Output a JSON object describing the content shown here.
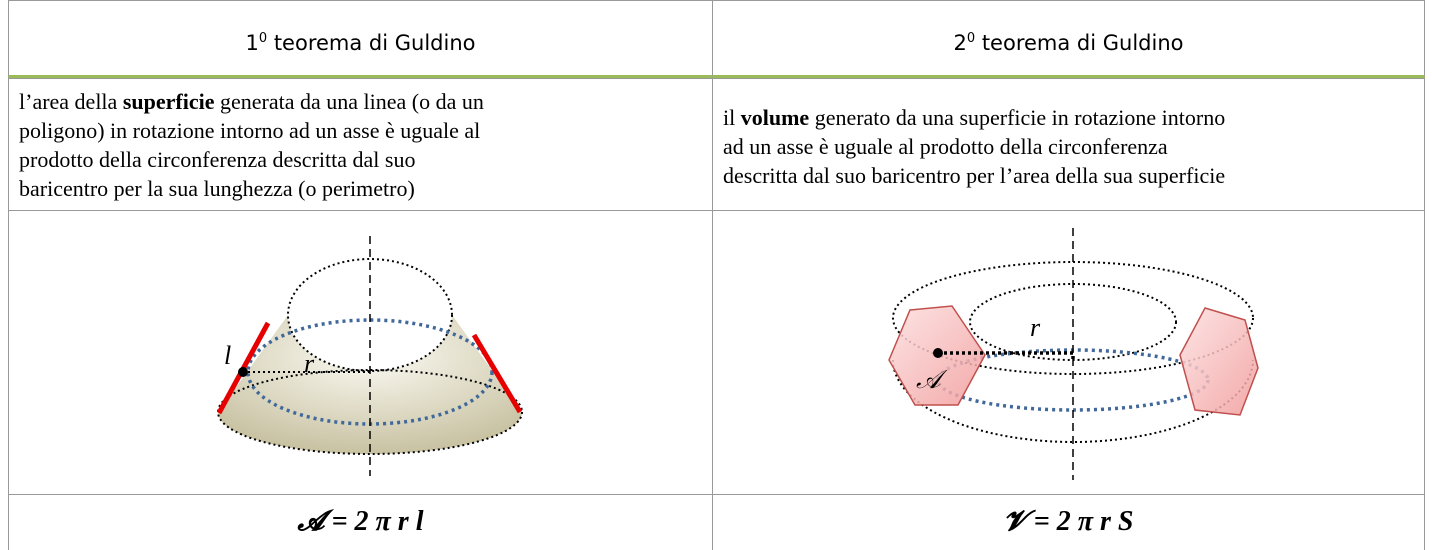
{
  "header": [
    {
      "number": "1",
      "superscript": "0",
      "title": "teorema di Guldino"
    },
    {
      "number": "2",
      "superscript": "0",
      "title": "teorema di Guldino"
    }
  ],
  "descriptions": [
    {
      "before": "l’area della ",
      "bold": "superficie",
      "after": " generata da una linea (o da un",
      "more_lines": [
        "poligono) in rotazione intorno ad un asse è uguale al",
        "prodotto della circonferenza descritta dal suo",
        "baricentro per la sua lunghezza (o perimetro)"
      ]
    },
    {
      "before": "il ",
      "bold": "volume",
      "after": " generato da una superficie in rotazione intorno",
      "more_lines": [
        "ad un asse è uguale al prodotto della circonferenza",
        "descritta dal suo baricentro per l’area della sua superficie"
      ]
    }
  ],
  "diagrams": [
    {
      "labels": [
        "l",
        "r"
      ]
    },
    {
      "labels": [
        "r",
        "𝒜"
      ]
    }
  ],
  "formulas": [
    "𝓐 = 2 π r l",
    "𝓥 = 2 π r S"
  ]
}
